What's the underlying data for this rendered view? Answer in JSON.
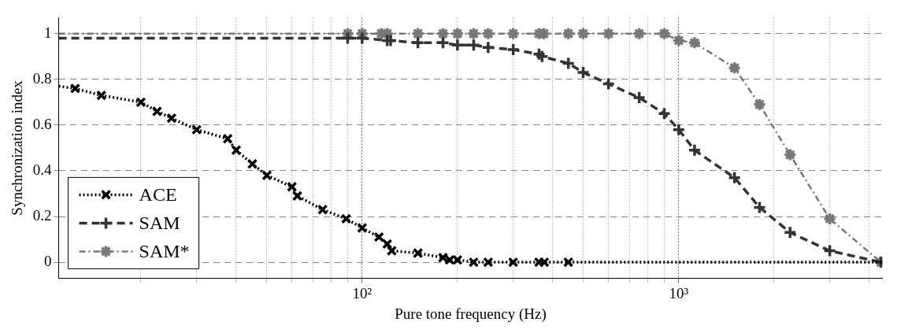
{
  "chart_data": {
    "type": "line",
    "xlabel": "Pure tone frequency (Hz)",
    "ylabel": "Synchronization index",
    "log": "x",
    "grid": true,
    "legend": "bottom left",
    "xlim": [
      11,
      4400
    ],
    "ylim": [
      -0.07,
      1.07
    ],
    "xticks": [
      {
        "value": 20,
        "label": null
      },
      {
        "value": 30,
        "label": null
      },
      {
        "value": 40,
        "label": null
      },
      {
        "value": 50,
        "label": null
      },
      {
        "value": 60,
        "label": null
      },
      {
        "value": 70,
        "label": null
      },
      {
        "value": 80,
        "label": null
      },
      {
        "value": 90,
        "label": null
      },
      {
        "value": 100,
        "label": "10²"
      },
      {
        "value": 200,
        "label": null
      },
      {
        "value": 300,
        "label": null
      },
      {
        "value": 400,
        "label": null
      },
      {
        "value": 500,
        "label": null
      },
      {
        "value": 600,
        "label": null
      },
      {
        "value": 700,
        "label": null
      },
      {
        "value": 800,
        "label": null
      },
      {
        "value": 900,
        "label": null
      },
      {
        "value": 1000,
        "label": "10³"
      },
      {
        "value": 2000,
        "label": null
      },
      {
        "value": 3000,
        "label": null
      },
      {
        "value": 4000,
        "label": null
      }
    ],
    "yticks": [
      0,
      0.2,
      0.4,
      0.6,
      0.8,
      1
    ],
    "series": [
      {
        "name": "ACE",
        "color": "#000000",
        "marker": "x",
        "line_style": "dotted",
        "x": [
          11,
          12.4,
          15,
          20,
          22.5,
          25,
          30,
          37.6,
          40,
          45,
          50,
          60,
          62.4,
          75,
          89,
          100,
          113,
          120,
          124,
          150,
          180,
          189,
          200,
          225,
          250,
          300,
          362,
          376,
          448,
          4400
        ],
        "values": [
          0.77,
          0.76,
          0.73,
          0.7,
          0.66,
          0.63,
          0.58,
          0.54,
          0.49,
          0.43,
          0.38,
          0.33,
          0.29,
          0.23,
          0.19,
          0.15,
          0.11,
          0.08,
          0.05,
          0.04,
          0.02,
          0.01,
          0.01,
          0,
          0,
          0,
          0,
          0,
          0,
          0
        ]
      },
      {
        "name": "SAM",
        "color": "#333333",
        "marker": "plus",
        "line_style": "dashed",
        "x": [
          11,
          90,
          100,
          120,
          123,
          150,
          180,
          200,
          225,
          250,
          300,
          362,
          370,
          448,
          499,
          600,
          750,
          900,
          1000,
          1122,
          1500,
          1800,
          2248,
          3000,
          4350
        ],
        "values": [
          0.98,
          0.98,
          0.98,
          0.97,
          0.97,
          0.96,
          0.96,
          0.95,
          0.95,
          0.94,
          0.93,
          0.91,
          0.9,
          0.87,
          0.83,
          0.78,
          0.72,
          0.65,
          0.58,
          0.49,
          0.37,
          0.24,
          0.13,
          0.05,
          0
        ]
      },
      {
        "name": "SAM*",
        "color": "#777777",
        "marker": "cross",
        "line_style": "dashdot",
        "x": [
          11,
          90,
          100,
          115,
          120,
          150,
          180,
          200,
          225,
          250,
          300,
          362,
          375,
          448,
          499,
          600,
          750,
          900,
          1000,
          1122,
          1500,
          1800,
          2248,
          3000,
          4350
        ],
        "values": [
          1,
          1,
          1,
          1,
          1,
          1,
          1,
          1,
          1,
          1,
          1,
          1,
          1,
          1,
          1,
          1,
          1,
          1,
          0.97,
          0.96,
          0.85,
          0.69,
          0.47,
          0.19,
          0
        ]
      }
    ]
  }
}
